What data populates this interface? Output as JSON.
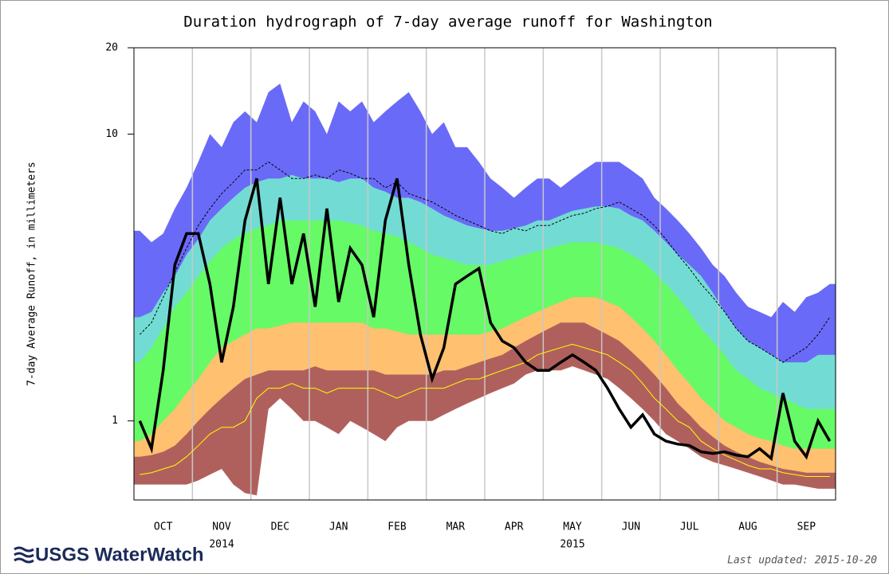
{
  "chart_data": {
    "type": "duration-hydrograph",
    "title": "Duration hydrograph of 7-day average runoff for Washington",
    "y_label": "7-day Average Runoff, in millimeters",
    "y_log": true,
    "ylim": [
      0.53,
      20
    ],
    "yticks": [
      1,
      10,
      20
    ],
    "categories": [
      null,
      null,
      "OCT",
      null,
      null,
      null,
      null,
      "NOV",
      null,
      null,
      null,
      null,
      "DEC",
      null,
      null,
      null,
      null,
      "JAN",
      null,
      null,
      null,
      null,
      "FEB",
      null,
      null,
      null,
      null,
      "MAR",
      null,
      null,
      null,
      null,
      "APR",
      null,
      null,
      null,
      null,
      "MAY",
      null,
      null,
      null,
      null,
      "JUN",
      null,
      null,
      null,
      null,
      "JUL",
      null,
      null,
      null,
      null,
      "AUG",
      null,
      null,
      null,
      null,
      "SEP",
      null,
      null
    ],
    "x_sublabels": [
      {
        "text": "2014",
        "category": "NOV"
      },
      {
        "text": "2015",
        "category": "MAY"
      }
    ],
    "series": [
      {
        "color": "#6a6af8",
        "fill": true,
        "values": [
          4.6,
          4.2,
          4.5,
          5.5,
          6.5,
          8,
          10,
          9,
          11,
          12,
          11,
          14,
          15,
          11,
          13,
          12,
          10,
          13,
          12,
          13,
          11,
          12,
          13,
          14,
          12,
          10,
          11,
          9,
          9,
          8,
          7,
          6.5,
          6,
          6.5,
          7,
          7,
          6.5,
          7,
          7.5,
          8,
          8,
          8,
          7.5,
          7,
          6,
          5.5,
          5,
          4.5,
          4,
          3.5,
          3.2,
          2.8,
          2.5,
          2.4,
          2.3,
          2.6,
          2.4,
          2.7,
          2.8,
          3.0
        ]
      },
      {
        "color": "#72dcd4",
        "fill": true,
        "values": [
          2.3,
          2.4,
          2.8,
          3.2,
          3.8,
          4.3,
          5,
          5.5,
          6,
          6.5,
          6.8,
          7,
          7,
          7.2,
          7,
          7,
          7,
          6.8,
          7,
          7,
          6.5,
          6.3,
          6,
          6,
          5.8,
          5.5,
          5.2,
          5,
          4.8,
          4.7,
          4.6,
          4.6,
          4.7,
          4.8,
          5,
          5,
          5.2,
          5.4,
          5.5,
          5.6,
          5.6,
          5.5,
          5.2,
          5,
          4.6,
          4.2,
          3.8,
          3.5,
          3.2,
          2.8,
          2.4,
          2.1,
          1.9,
          1.8,
          1.7,
          1.6,
          1.6,
          1.6,
          1.7,
          1.7
        ]
      },
      {
        "color": "#66fa66",
        "fill": true,
        "values": [
          1.6,
          1.8,
          2.1,
          2.5,
          2.8,
          3.2,
          3.6,
          4,
          4.3,
          4.5,
          4.7,
          4.8,
          5,
          5,
          5,
          5,
          5,
          5,
          4.9,
          4.8,
          4.6,
          4.5,
          4.4,
          4.2,
          4,
          3.8,
          3.7,
          3.6,
          3.5,
          3.5,
          3.5,
          3.6,
          3.7,
          3.8,
          3.9,
          4,
          4.1,
          4.2,
          4.2,
          4.2,
          4.1,
          4,
          3.8,
          3.6,
          3.3,
          3,
          2.7,
          2.4,
          2.1,
          1.9,
          1.7,
          1.5,
          1.4,
          1.3,
          1.25,
          1.2,
          1.15,
          1.1,
          1.1,
          1.1
        ]
      },
      {
        "color": "#ffc070",
        "fill": true,
        "values": [
          0.85,
          0.9,
          1.0,
          1.1,
          1.25,
          1.4,
          1.6,
          1.8,
          1.9,
          2.0,
          2.1,
          2.1,
          2.15,
          2.2,
          2.2,
          2.2,
          2.2,
          2.2,
          2.2,
          2.2,
          2.1,
          2.1,
          2.05,
          2.0,
          2.0,
          2.0,
          2.0,
          2.0,
          2.0,
          2.0,
          2.05,
          2.1,
          2.2,
          2.3,
          2.4,
          2.5,
          2.6,
          2.7,
          2.7,
          2.7,
          2.6,
          2.5,
          2.3,
          2.1,
          1.9,
          1.7,
          1.5,
          1.35,
          1.2,
          1.1,
          1.0,
          0.95,
          0.9,
          0.87,
          0.85,
          0.82,
          0.8,
          0.8,
          0.8,
          0.8
        ]
      },
      {
        "color": "#b0605c",
        "fill": true,
        "values": [
          0.75,
          0.76,
          0.78,
          0.82,
          0.9,
          1.0,
          1.1,
          1.2,
          1.3,
          1.4,
          1.45,
          1.5,
          1.5,
          1.5,
          1.5,
          1.55,
          1.5,
          1.5,
          1.5,
          1.5,
          1.5,
          1.45,
          1.45,
          1.45,
          1.45,
          1.45,
          1.5,
          1.5,
          1.55,
          1.6,
          1.65,
          1.7,
          1.8,
          1.9,
          2.0,
          2.1,
          2.2,
          2.2,
          2.2,
          2.1,
          2.0,
          1.9,
          1.75,
          1.6,
          1.45,
          1.3,
          1.15,
          1.05,
          0.95,
          0.88,
          0.82,
          0.78,
          0.75,
          0.72,
          0.7,
          0.68,
          0.67,
          0.66,
          0.66,
          0.66
        ]
      },
      {
        "color": "#ffffff",
        "fill": true,
        "values": [
          0.6,
          0.6,
          0.6,
          0.6,
          0.6,
          0.62,
          0.65,
          0.68,
          0.6,
          0.56,
          0.55,
          1.1,
          1.2,
          1.1,
          1.0,
          1.0,
          0.95,
          0.9,
          1.0,
          0.95,
          0.9,
          0.85,
          0.95,
          1.0,
          1.0,
          1.0,
          1.05,
          1.1,
          1.15,
          1.2,
          1.25,
          1.3,
          1.35,
          1.45,
          1.5,
          1.5,
          1.5,
          1.55,
          1.5,
          1.45,
          1.4,
          1.3,
          1.2,
          1.1,
          1.0,
          0.9,
          0.85,
          0.8,
          0.75,
          0.72,
          0.7,
          0.68,
          0.66,
          0.64,
          0.62,
          0.6,
          0.6,
          0.59,
          0.58,
          0.58
        ]
      },
      {
        "color": "#ffff00",
        "fill": false,
        "values": [
          0.65,
          0.66,
          0.68,
          0.7,
          0.75,
          0.82,
          0.9,
          0.95,
          0.95,
          1.0,
          1.2,
          1.3,
          1.3,
          1.35,
          1.3,
          1.3,
          1.25,
          1.3,
          1.3,
          1.3,
          1.3,
          1.25,
          1.2,
          1.25,
          1.3,
          1.3,
          1.3,
          1.35,
          1.4,
          1.4,
          1.45,
          1.5,
          1.55,
          1.6,
          1.7,
          1.75,
          1.8,
          1.85,
          1.8,
          1.75,
          1.7,
          1.6,
          1.5,
          1.35,
          1.2,
          1.1,
          1.0,
          0.95,
          0.85,
          0.8,
          0.76,
          0.73,
          0.7,
          0.68,
          0.68,
          0.66,
          0.65,
          0.64,
          0.64,
          0.64
        ]
      },
      {
        "color": "#000000",
        "fill": false,
        "dash": true,
        "values": [
          2.0,
          2.2,
          2.7,
          3.3,
          4,
          4.8,
          5.5,
          6.2,
          6.8,
          7.5,
          7.5,
          8,
          7.5,
          7,
          7,
          7.2,
          7,
          7.5,
          7.3,
          7,
          7,
          6.5,
          6.8,
          6.2,
          6,
          5.8,
          5.5,
          5.2,
          5,
          4.8,
          4.6,
          4.5,
          4.7,
          4.6,
          4.8,
          4.8,
          5,
          5.2,
          5.3,
          5.5,
          5.6,
          5.8,
          5.5,
          5.2,
          4.8,
          4.3,
          3.8,
          3.4,
          3,
          2.7,
          2.4,
          2.1,
          1.9,
          1.8,
          1.7,
          1.6,
          1.7,
          1.8,
          2.0,
          2.3
        ]
      },
      {
        "color": "#000000",
        "fill": false,
        "bold": true,
        "values": [
          1.0,
          0.8,
          1.5,
          3.5,
          4.5,
          4.5,
          3,
          1.6,
          2.5,
          5,
          7,
          3,
          6,
          3,
          4.5,
          2.5,
          5.5,
          2.6,
          4,
          3.5,
          2.3,
          5,
          7,
          3.5,
          2,
          1.4,
          1.8,
          3,
          3.2,
          3.4,
          2.2,
          1.9,
          1.8,
          1.6,
          1.5,
          1.5,
          1.6,
          1.7,
          1.6,
          1.5,
          1.3,
          1.1,
          0.95,
          1.05,
          0.9,
          0.85,
          0.83,
          0.82,
          0.78,
          0.77,
          0.78,
          0.76,
          0.75,
          0.8,
          0.74,
          1.25,
          0.85,
          0.75,
          1.0,
          0.85
        ]
      }
    ],
    "logo": "USGS WaterWatch",
    "footnote": "Last updated: 2015-10-20"
  }
}
